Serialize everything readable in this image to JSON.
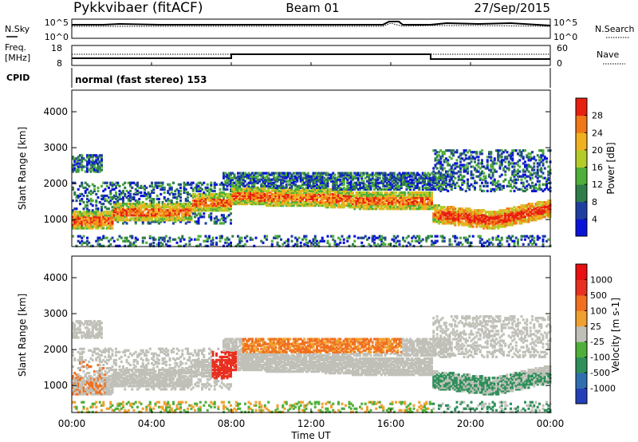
{
  "header": {
    "station": "Pykkvibaer (fitACF)",
    "beam": "Beam 01",
    "date": "27/Sep/2015"
  },
  "status_panels": {
    "nsky": {
      "label": "N.Sky",
      "ticks": [
        "10^5",
        "10^0"
      ]
    },
    "nsearch": {
      "label": "N.Search",
      "ticks": [
        "10^5",
        "10^0"
      ]
    },
    "freq": {
      "label_top": "Freq.",
      "label_bottom": "[MHz]",
      "ticks": [
        "18",
        "8"
      ]
    },
    "nave": {
      "label": "Nave",
      "ticks": [
        "60",
        "0"
      ]
    },
    "cpid": {
      "label": "CPID",
      "text": "normal (fast stereo) 153"
    }
  },
  "chart_data": [
    {
      "type": "heatmap",
      "name": "power",
      "ylabel": "Slant Range [km]",
      "y_ticks": [
        1000,
        2000,
        3000,
        4000
      ],
      "ylim": [
        250,
        4600
      ],
      "colorbar": {
        "label": "Power [dB]",
        "ticks": [
          "4",
          "8",
          "12",
          "16",
          "20",
          "24",
          "28"
        ],
        "colors": [
          "#0a14d8",
          "#1f3fa0",
          "#2f7d4a",
          "#4faf3a",
          "#b5cc28",
          "#f0b020",
          "#f07818",
          "#e82010"
        ]
      }
    },
    {
      "type": "heatmap",
      "name": "velocity",
      "ylabel": "Slant Range [km]",
      "y_ticks": [
        1000,
        2000,
        3000,
        4000
      ],
      "ylim": [
        250,
        4600
      ],
      "colorbar": {
        "label": "Velocity [m s-1]",
        "ticks": [
          "1000",
          "500",
          "100",
          "25",
          "-25",
          "-100",
          "-500",
          "-1000"
        ],
        "colors": [
          "#2440b8",
          "#2f6fb0",
          "#2f8f5a",
          "#4faf3a",
          "#c0c0b8",
          "#f0a030",
          "#f07020",
          "#e83020",
          "#e81010"
        ]
      }
    }
  ],
  "time_axis": {
    "xlabel": "Time UT",
    "ticks": [
      "00:00",
      "04:00",
      "08:00",
      "12:00",
      "16:00",
      "20:00",
      "00:00"
    ]
  }
}
